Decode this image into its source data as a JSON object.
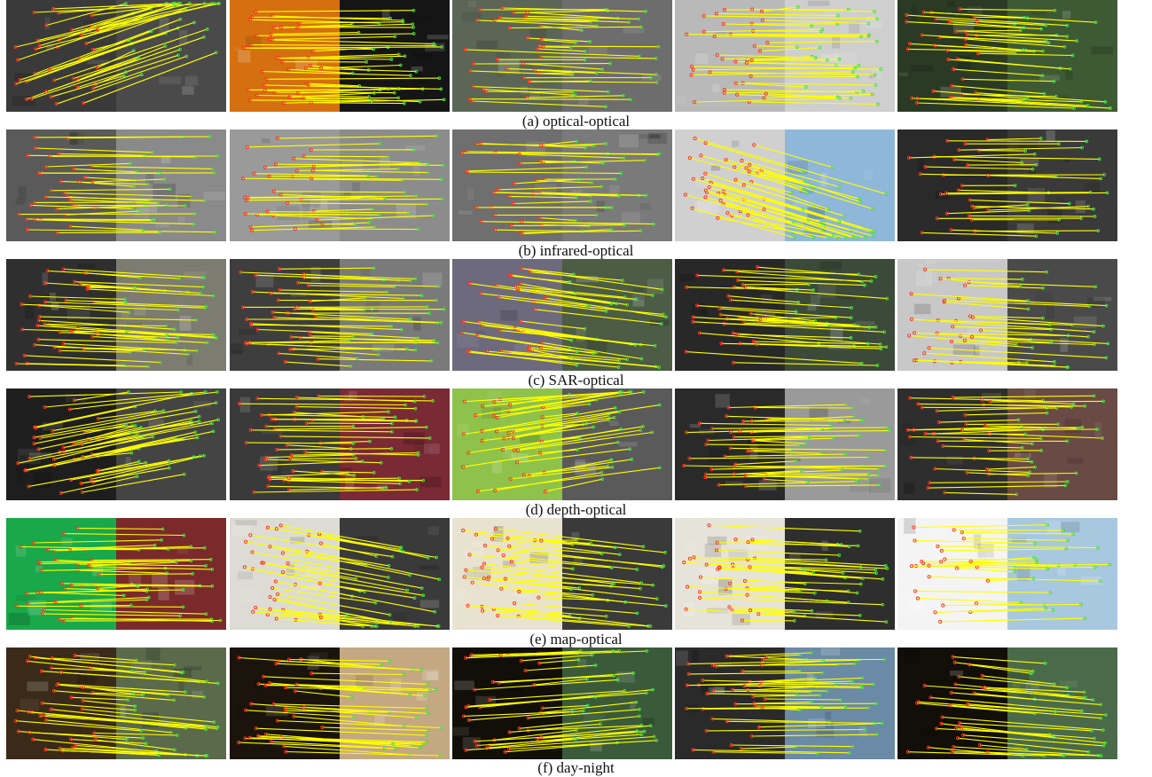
{
  "figure": {
    "rows": [
      {
        "caption": "(a) optical-optical",
        "panels": [
          {
            "left_tone": "#3a3a3a",
            "right_tone": "#4a4a4a",
            "tilt": -0.35,
            "count": 38
          },
          {
            "left_tone": "#d4700f",
            "right_tone": "#151515",
            "tilt": 0.0,
            "count": 40
          },
          {
            "left_tone": "#5b6657",
            "right_tone": "#6d6d6d",
            "tilt": 0.02,
            "count": 34
          },
          {
            "left_tone": "#b9b9b9",
            "right_tone": "#cfcfcf",
            "tilt": 0.0,
            "count": 36
          },
          {
            "left_tone": "#2a3a24",
            "right_tone": "#3e5a35",
            "tilt": 0.05,
            "count": 36
          }
        ]
      },
      {
        "caption": "(b) infrared-optical",
        "panels": [
          {
            "left_tone": "#5a5a5a",
            "right_tone": "#8a8a8a",
            "tilt": 0.0,
            "count": 34
          },
          {
            "left_tone": "#9a9a9a",
            "right_tone": "#8c8c8c",
            "tilt": 0.0,
            "count": 32
          },
          {
            "left_tone": "#6f6f6f",
            "right_tone": "#7a7a7a",
            "tilt": 0.0,
            "count": 34
          },
          {
            "left_tone": "#d0d0d0",
            "right_tone": "#8fb7d9",
            "tilt": 0.3,
            "count": 40
          },
          {
            "left_tone": "#2a2a2a",
            "right_tone": "#3a3a3a",
            "tilt": 0.0,
            "count": 28
          }
        ]
      },
      {
        "caption": "(c) SAR-optical",
        "panels": [
          {
            "left_tone": "#2f2f2f",
            "right_tone": "#7c7c70",
            "tilt": 0.05,
            "count": 36
          },
          {
            "left_tone": "#3e3e3e",
            "right_tone": "#7a7a7a",
            "tilt": 0.02,
            "count": 38
          },
          {
            "left_tone": "#6e6a7e",
            "right_tone": "#4c5c45",
            "tilt": 0.12,
            "count": 36
          },
          {
            "left_tone": "#282828",
            "right_tone": "#3c4a3a",
            "tilt": 0.05,
            "count": 32
          },
          {
            "left_tone": "#c8c8c8",
            "right_tone": "#4a4a4a",
            "tilt": 0.05,
            "count": 30
          }
        ]
      },
      {
        "caption": "(d) depth-optical",
        "panels": [
          {
            "left_tone": "#1e1e1e",
            "right_tone": "#444444",
            "tilt": -0.2,
            "count": 40
          },
          {
            "left_tone": "#3a3a3a",
            "right_tone": "#7a2a34",
            "tilt": 0.0,
            "count": 38
          },
          {
            "left_tone": "#8fc24a",
            "right_tone": "#5a5a5a",
            "tilt": -0.15,
            "count": 36
          },
          {
            "left_tone": "#2a2a2a",
            "right_tone": "#9a9a9a",
            "tilt": 0.0,
            "count": 36
          },
          {
            "left_tone": "#2e2e2e",
            "right_tone": "#6a4a44",
            "tilt": 0.0,
            "count": 32
          }
        ]
      },
      {
        "caption": "(e) map-optical",
        "panels": [
          {
            "left_tone": "#19a84a",
            "right_tone": "#7a2a2a",
            "tilt": 0.0,
            "count": 36
          },
          {
            "left_tone": "#dcdcd4",
            "right_tone": "#3a3a3a",
            "tilt": 0.18,
            "count": 34
          },
          {
            "left_tone": "#e8e2d0",
            "right_tone": "#3a3a3a",
            "tilt": 0.1,
            "count": 32
          },
          {
            "left_tone": "#e6e3da",
            "right_tone": "#2e2e2e",
            "tilt": 0.05,
            "count": 34
          },
          {
            "left_tone": "#f4f4f4",
            "right_tone": "#a8c8e0",
            "tilt": 0.0,
            "count": 26
          }
        ]
      },
      {
        "caption": "(f) day-night",
        "panels": [
          {
            "left_tone": "#3a2a18",
            "right_tone": "#5a6a4a",
            "tilt": 0.08,
            "count": 38
          },
          {
            "left_tone": "#1a140c",
            "right_tone": "#c4a882",
            "tilt": 0.05,
            "count": 34
          },
          {
            "left_tone": "#120e08",
            "right_tone": "#3a5a3a",
            "tilt": -0.08,
            "count": 34
          },
          {
            "left_tone": "#2a2a2a",
            "right_tone": "#6a8aa6",
            "tilt": 0.0,
            "count": 38
          },
          {
            "left_tone": "#120e08",
            "right_tone": "#4a6a4a",
            "tilt": 0.08,
            "count": 30
          }
        ]
      }
    ]
  },
  "colors": {
    "match_line": "#ffff00",
    "keypoint_left": "#ff3020",
    "keypoint_right": "#40e040",
    "caption_text": "#111111"
  }
}
